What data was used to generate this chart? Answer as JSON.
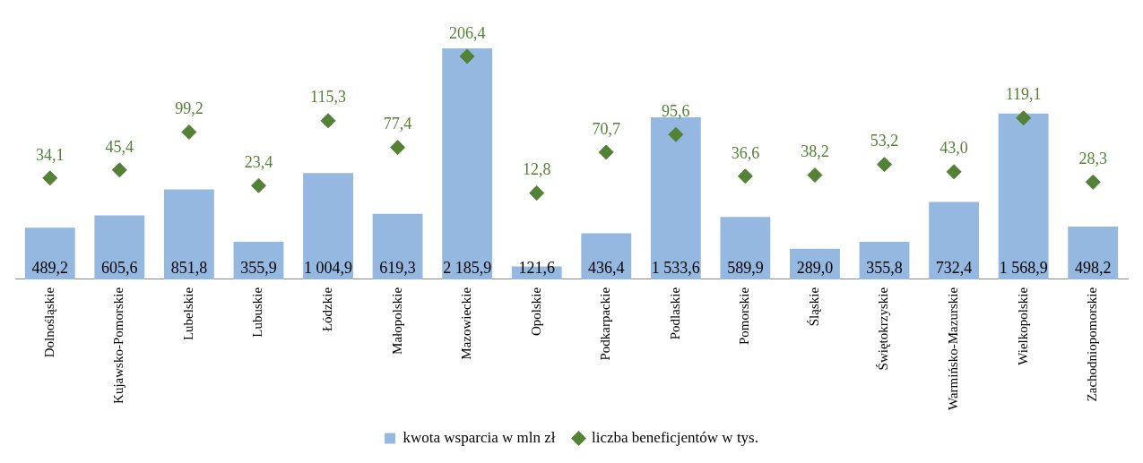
{
  "chart_data": {
    "type": "bar",
    "categories": [
      "Dolnośląskie",
      "Kujawsko-Pomorskie",
      "Lubelskie",
      "Lubuskie",
      "Łódzkie",
      "Małopolskie",
      "Mazowieckie",
      "Opolskie",
      "Podkarpackie",
      "Podlaskie",
      "Pomorskie",
      "Śląskie",
      "Świętokrzyskie",
      "Warmińsko-Mazurskie",
      "Wielkopolskie",
      "Zachodniopomorskie"
    ],
    "series": [
      {
        "name": "kwota wsparcia w mln zł",
        "color": "#95b8e0",
        "values": [
          489.2,
          605.6,
          851.8,
          355.9,
          1004.9,
          619.3,
          2185.9,
          121.6,
          436.4,
          1533.6,
          589.9,
          289.0,
          355.8,
          732.4,
          1568.9,
          498.2
        ],
        "value_labels": [
          "489,2",
          "605,6",
          "851,8",
          "355,9",
          "1 004,9",
          "619,3",
          "2 185,9",
          "121,6",
          "436,4",
          "1 533,6",
          "589,9",
          "289,0",
          "355,8",
          "732,4",
          "1 568,9",
          "498,2"
        ]
      },
      {
        "name": "liczba beneficjentów w tys.",
        "type": "scatter",
        "axis": "y2",
        "color": "#538135",
        "values": [
          34.1,
          45.4,
          99.2,
          23.4,
          115.3,
          77.4,
          206.4,
          12.8,
          70.7,
          95.6,
          36.6,
          38.2,
          53.2,
          43.0,
          119.1,
          28.3
        ],
        "value_labels": [
          "34,1",
          "45,4",
          "99,2",
          "23,4",
          "115,3",
          "77,4",
          "206,4",
          "12,8",
          "70,7",
          "95,6",
          "36,6",
          "38,2",
          "53,2",
          "43,0",
          "119,1",
          "28,3"
        ]
      }
    ],
    "marker": "diamond",
    "legend": "bottom",
    "grid": false,
    "tick_labels": "x"
  }
}
